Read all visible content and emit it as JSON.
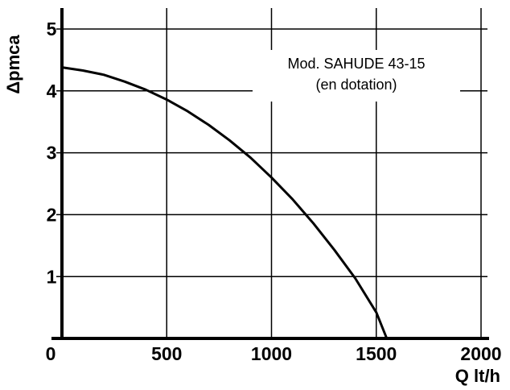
{
  "chart_data": {
    "type": "line",
    "title": "",
    "xlabel": "Q lt/h",
    "ylabel": "Δpmca",
    "xlim": [
      0,
      2000
    ],
    "ylim": [
      0,
      5
    ],
    "x_ticks": [
      "0",
      "500",
      "1000",
      "1500",
      "2000"
    ],
    "y_ticks": [
      "1",
      "2",
      "3",
      "4",
      "5"
    ],
    "grid": true,
    "series": [
      {
        "x": [
          0,
          100,
          200,
          300,
          400,
          500,
          600,
          700,
          800,
          900,
          1000,
          1100,
          1200,
          1300,
          1400,
          1500,
          1550
        ],
        "y": [
          4.38,
          4.33,
          4.26,
          4.15,
          4.02,
          3.86,
          3.67,
          3.45,
          3.2,
          2.92,
          2.6,
          2.25,
          1.86,
          1.43,
          0.97,
          0.42,
          0.0
        ]
      }
    ],
    "annotations": [
      {
        "text": "Mod. SAHUDE 43-15"
      },
      {
        "text": "(en dotation)"
      }
    ]
  },
  "colors": {
    "background": "#ffffff",
    "ink": "#000000"
  }
}
